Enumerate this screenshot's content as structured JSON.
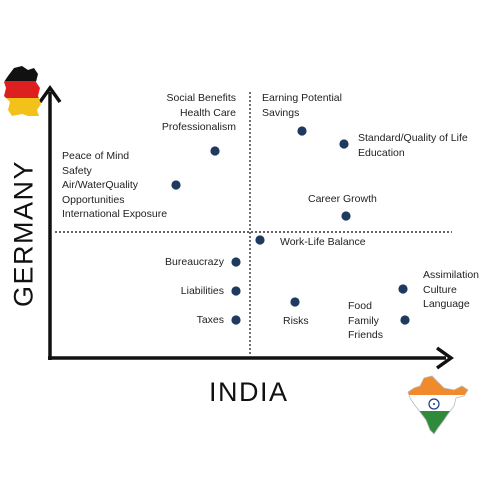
{
  "axes": {
    "x_label": "INDIA",
    "y_label": "GERMANY"
  },
  "colors": {
    "dot": "#1e3a5f",
    "axis": "#111111",
    "germany_flag": [
      "#111111",
      "#dd1f1f",
      "#f2c21b"
    ],
    "india_flag": [
      "#f08a2c",
      "#ffffff",
      "#2f8a3b"
    ]
  },
  "icons": {
    "germany": "germany-flag-map-icon",
    "india": "india-flag-map-icon"
  },
  "labels": {
    "social": [
      "Social Benefits",
      "Health Care",
      "Professionalism"
    ],
    "peace": [
      "Peace of Mind",
      "Safety",
      "Air/WaterQuality",
      "Opportunities",
      "International Exposure"
    ],
    "earning": [
      "Earning Potential",
      "Savings"
    ],
    "standard": [
      "Standard/Quality of Life",
      "Education"
    ],
    "career": [
      "Career Growth"
    ],
    "worklife": [
      "Work-Life Balance"
    ],
    "bureaucrazy": [
      "Bureaucrazy"
    ],
    "liabilities": [
      "Liabilities"
    ],
    "taxes": [
      "Taxes"
    ],
    "risks": [
      "Risks"
    ],
    "assimilation": [
      "Assimilation",
      "Culture",
      "Language"
    ],
    "food": [
      "Food",
      "Family",
      "Friends"
    ]
  }
}
